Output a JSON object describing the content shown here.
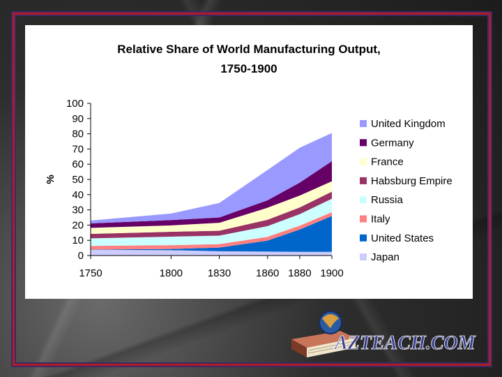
{
  "chart_data": {
    "type": "area",
    "stacked": true,
    "title_lines": [
      "Relative Share of World Manufacturing Output,",
      "1750-1900"
    ],
    "ylabel": "%",
    "x": [
      1750,
      1800,
      1830,
      1860,
      1880,
      1900
    ],
    "x_ticks": [
      "1750",
      "1800",
      "1830",
      "1860",
      "1880",
      "1900"
    ],
    "y_ticks": [
      "0",
      "10",
      "20",
      "30",
      "40",
      "50",
      "60",
      "70",
      "80",
      "90",
      "100"
    ],
    "ylim": [
      0,
      100
    ],
    "grid": false,
    "legend_position": "right",
    "series": [
      {
        "name": "Japan",
        "color": "#ccccff",
        "values": [
          3.8,
          3.5,
          2.8,
          2.6,
          2.4,
          2.4
        ]
      },
      {
        "name": "United States",
        "color": "#0066cc",
        "values": [
          0.1,
          0.8,
          2.4,
          7.2,
          14.7,
          23.6
        ]
      },
      {
        "name": "Italy",
        "color": "#ff8080",
        "values": [
          2.4,
          2.5,
          2.3,
          2.5,
          2.5,
          2.5
        ]
      },
      {
        "name": "Russia",
        "color": "#ccffff",
        "values": [
          5.0,
          5.6,
          5.6,
          7.0,
          7.6,
          8.8
        ]
      },
      {
        "name": "Habsburg Empire",
        "color": "#993366",
        "values": [
          2.9,
          3.2,
          3.2,
          4.2,
          4.4,
          4.7
        ]
      },
      {
        "name": "France",
        "color": "#ffffcc",
        "values": [
          4.0,
          4.2,
          5.2,
          7.9,
          7.8,
          6.8
        ]
      },
      {
        "name": "Germany",
        "color": "#660066",
        "values": [
          2.9,
          3.5,
          3.5,
          4.9,
          8.5,
          13.2
        ]
      },
      {
        "name": "United Kingdom",
        "color": "#9999ff",
        "values": [
          1.9,
          4.3,
          9.5,
          19.9,
          22.9,
          18.5
        ]
      }
    ],
    "legend_order": [
      "United Kingdom",
      "Germany",
      "France",
      "Habsburg Empire",
      "Russia",
      "Italy",
      "United States",
      "Japan"
    ]
  },
  "logo": {
    "text": "AZTEACH.COM",
    "colors": {
      "text": "#3a3f8f",
      "book": "#a05a3a"
    }
  }
}
